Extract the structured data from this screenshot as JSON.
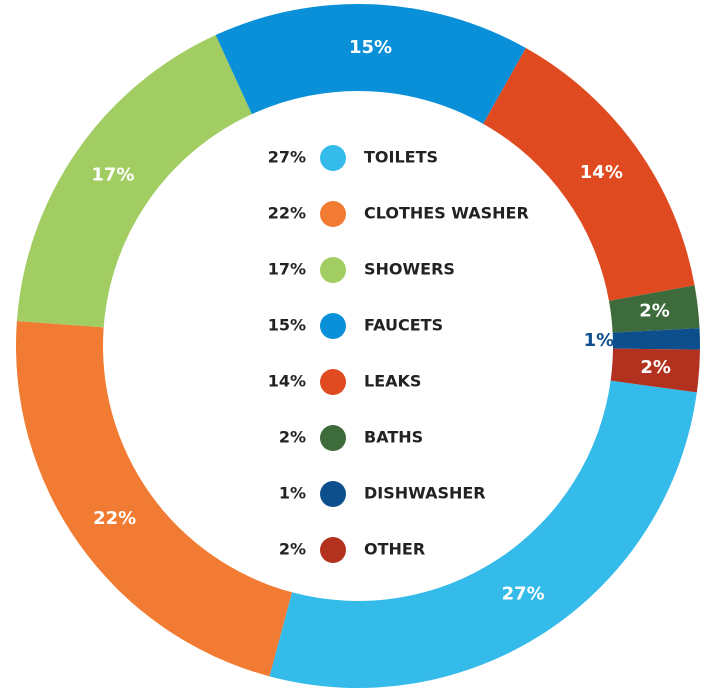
{
  "chart_data": {
    "type": "donut",
    "categories": [
      "TOILETS",
      "CLOTHES WASHER",
      "SHOWERS",
      "FAUCETS",
      "LEAKS",
      "BATHS",
      "DISHWASHER",
      "OTHER"
    ],
    "values": [
      27,
      22,
      17,
      15,
      14,
      2,
      1,
      2
    ],
    "value_labels": [
      "27%",
      "22%",
      "17%",
      "15%",
      "14%",
      "2%",
      "1%",
      "2%"
    ],
    "colors": [
      "#35bbe9",
      "#f27b33",
      "#a2cd62",
      "#0a90d8",
      "#e04a20",
      "#3e6b3b",
      "#0d4f8c",
      "#b3321f"
    ]
  }
}
